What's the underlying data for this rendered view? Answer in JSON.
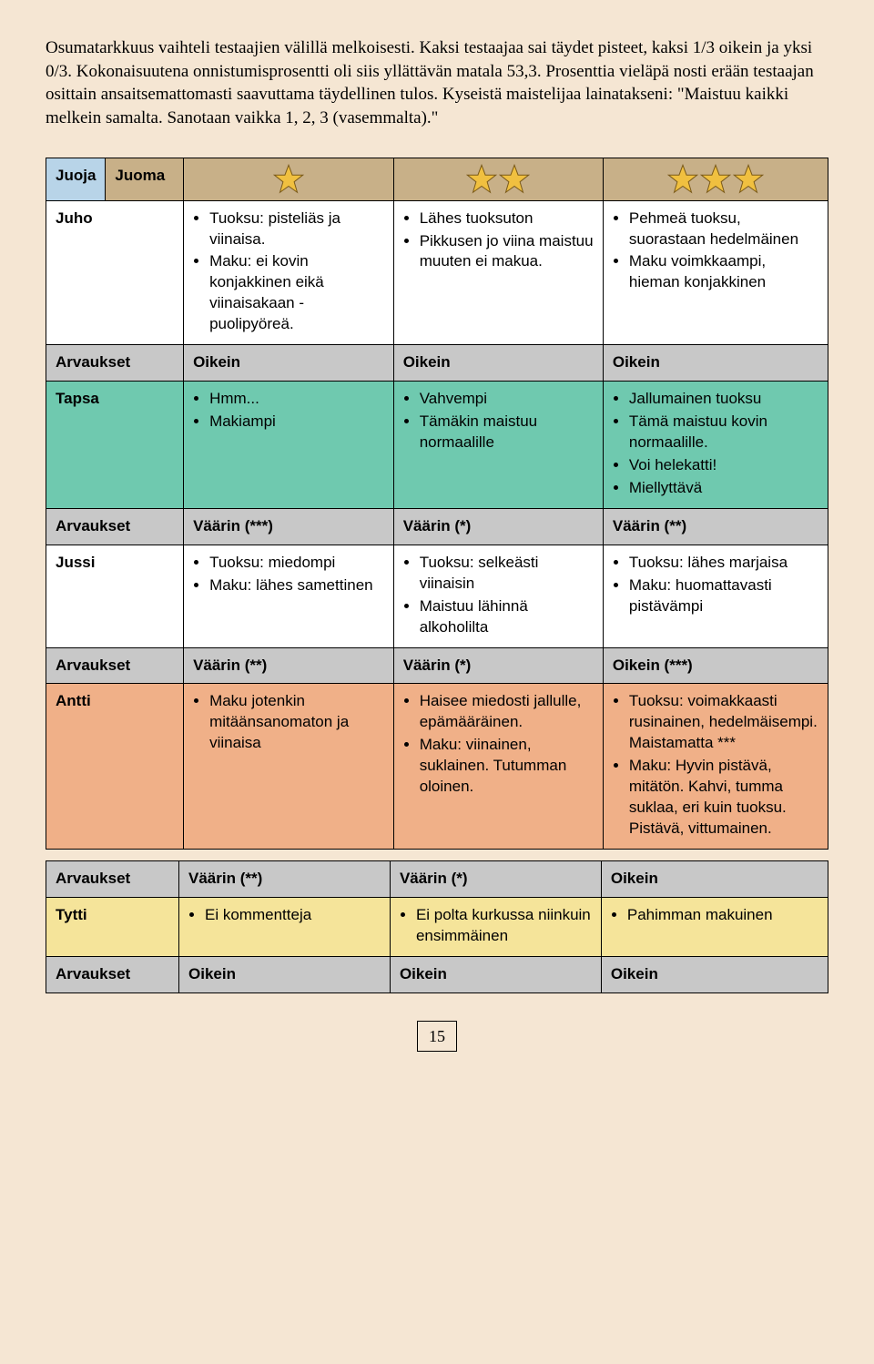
{
  "intro": "Osumatarkkuus vaihteli testaajien välillä melkoisesti. Kaksi testaajaa sai täydet pisteet, kaksi 1/3 oikein ja yksi 0/3. Kokonaisuutena onnistumisprosentti oli siis yllättävän matala 53,3. Prosenttia vieläpä nosti erään testaajan osittain ansaitsemattomasti saavuttama täydellinen tulos. Kyseistä maistelijaa lainatakseni: \"Maistuu kaikki melkein samalta. Sanotaan vaikka 1, 2, 3 (vasemmalta).\"",
  "header": {
    "c1": "Juoja",
    "c2": "Juoma"
  },
  "stars": {
    "col3": 1,
    "col4": 2,
    "col5": 3
  },
  "colors": {
    "star_fill": "#f0c040",
    "star_stroke": "#7a5a1a"
  },
  "rows": [
    {
      "label": "Juho",
      "bg": "row-white",
      "c3": [
        "Tuoksu: pisteliäs ja viinaisa.",
        "Maku: ei kovin konjakkinen eikä viinaisakaan - puolipyöreä."
      ],
      "c4": [
        "Lähes tuoksuton",
        "Pikkusen jo viina maistuu muuten ei makua."
      ],
      "c5": [
        "Pehmeä tuoksu, suorastaan hedelmäinen",
        "Maku voimkkaampi, hieman konjakkinen"
      ]
    },
    {
      "label": "Arvaukset",
      "bg": "row-gray",
      "c3t": "Oikein",
      "c4t": "Oikein",
      "c5t": "Oikein"
    },
    {
      "label": "Tapsa",
      "bg": "row-teal",
      "c3": [
        "Hmm...",
        "Makiampi"
      ],
      "c4": [
        "Vahvempi",
        "Tämäkin maistuu normaalille"
      ],
      "c5": [
        "Jallumainen tuoksu",
        "Tämä maistuu kovin normaalille.",
        "Voi helekatti!",
        "Miellyttävä"
      ]
    },
    {
      "label": "Arvaukset",
      "bg": "row-gray",
      "c3t": "Väärin (***)",
      "c4t": "Väärin (*)",
      "c5t": "Väärin (**)"
    },
    {
      "label": "Jussi",
      "bg": "row-white",
      "c3": [
        "Tuoksu: miedompi",
        "Maku: lähes samettinen"
      ],
      "c4": [
        "Tuoksu: selkeästi viinaisin",
        "Maistuu lähinnä alkoholilta"
      ],
      "c5": [
        "Tuoksu: lähes marjaisa",
        "Maku: huomattavasti pistävämpi"
      ]
    },
    {
      "label": "Arvaukset",
      "bg": "row-gray",
      "c3t": "Väärin (**)",
      "c4t": "Väärin (*)",
      "c5t": "Oikein (***)"
    },
    {
      "label": "Antti",
      "bg": "row-peach",
      "c3": [
        "Maku jotenkin mitäänsanomaton ja viinaisa"
      ],
      "c4": [
        "Haisee miedosti jallulle, epämääräinen.",
        "Maku: viinainen, suklainen. Tutumman oloinen."
      ],
      "c5": [
        "Tuoksu: voimakkaasti rusinainen, hedelmäisempi. Maistamatta ***",
        "Maku: Hyvin pistävä, mitätön. Kahvi, tumma suklaa, eri kuin tuoksu. Pistävä, vittumainen."
      ]
    }
  ],
  "rows2": [
    {
      "label": "Arvaukset",
      "bg": "row-gray",
      "c3t": "Väärin (**)",
      "c4t": "Väärin (*)",
      "c5t": "Oikein"
    },
    {
      "label": "Tytti",
      "bg": "row-yellow",
      "c3": [
        "Ei kommentteja"
      ],
      "c4": [
        "Ei polta kurkussa niinkuin ensimmäinen"
      ],
      "c5": [
        "Pahimman makuinen"
      ]
    },
    {
      "label": "Arvaukset",
      "bg": "row-gray",
      "c3t": "Oikein",
      "c4t": "Oikein",
      "c5t": "Oikein"
    }
  ],
  "page_number": "15"
}
